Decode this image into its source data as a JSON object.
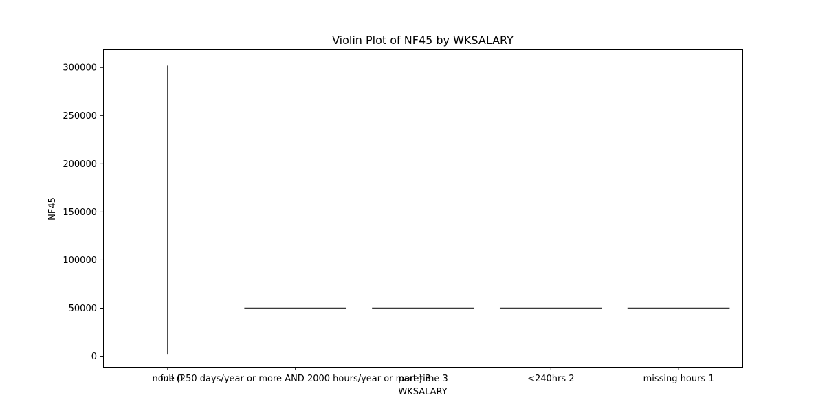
{
  "chart_data": {
    "type": "violin",
    "title": "Violin Plot of NF45 by WKSALARY",
    "xlabel": "WKSALARY",
    "ylabel": "NF45",
    "categories": [
      "none 0",
      "full (250 days/year or more AND 2000 hours/year or more) 3",
      "part time 3",
      "<240hrs 2",
      "missing hours 1"
    ],
    "violins": [
      {
        "category": "none 0",
        "min": 2500,
        "max": 302000
      },
      {
        "category": "full (250 days/year or more AND 2000 hours/year or more) 3",
        "min": 50000,
        "max": 50000
      },
      {
        "category": "part time 3",
        "min": 50000,
        "max": 50000
      },
      {
        "category": "<240hrs 2",
        "min": 50000,
        "max": 50000
      },
      {
        "category": "missing hours 1",
        "min": 50000,
        "max": 50000
      }
    ],
    "y_ticks": [
      0,
      50000,
      100000,
      150000,
      200000,
      250000,
      300000
    ],
    "ylim": [
      -11000,
      318000
    ],
    "grid": false,
    "line_color": "#3a3a3a"
  }
}
